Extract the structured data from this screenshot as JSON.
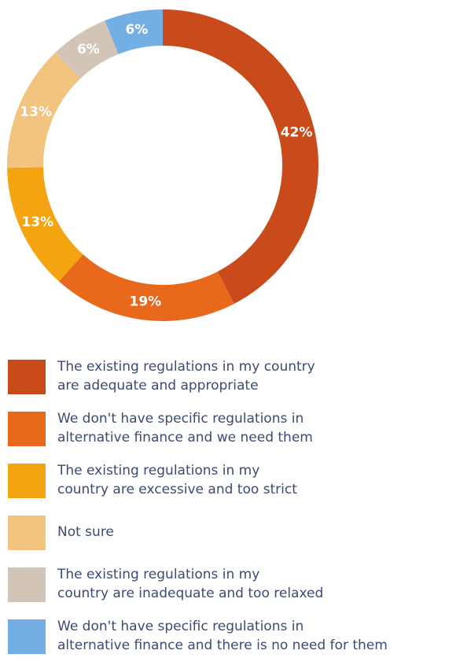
{
  "chart_data": {
    "type": "pie",
    "donut": true,
    "title": "",
    "legend_position": "bottom",
    "slices": [
      {
        "label": "The existing regulations in my country\nare adequate and appropriate",
        "value": 42,
        "value_label": "42%",
        "color": "#c94b1b"
      },
      {
        "label": "We don't have specific regulations in\nalternative finance and we need them",
        "value": 19,
        "value_label": "19%",
        "color": "#e8691c"
      },
      {
        "label": "The existing regulations in my\ncountry are excessive and too strict",
        "value": 13,
        "value_label": "13%",
        "color": "#f5a411"
      },
      {
        "label": "Not sure",
        "value": 13,
        "value_label": "13%",
        "color": "#f3c47f"
      },
      {
        "label": "The existing regulations in my\ncountry are inadequate and too relaxed",
        "value": 6,
        "value_label": "6%",
        "color": "#d3c4b8"
      },
      {
        "label": "We don't have specific regulations in\nalternative finance and there is no need for them",
        "value": 6,
        "value_label": "6%",
        "color": "#73aee4"
      }
    ]
  }
}
